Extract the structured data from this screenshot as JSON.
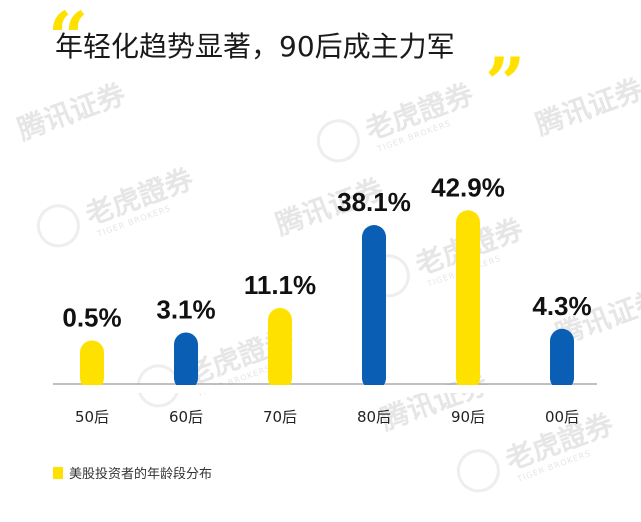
{
  "watermarks": [
    {
      "cn": "腾讯证券"
    },
    {
      "cn": "老虎證券",
      "en": "TIGER BROKERS"
    }
  ],
  "chart_data": {
    "type": "bar",
    "title": "年轻化趋势显著，90后成主力军",
    "categories": [
      "50后",
      "60后",
      "70后",
      "80后",
      "90后",
      "00后"
    ],
    "values": [
      0.5,
      3.1,
      11.1,
      38.1,
      42.9,
      4.3
    ],
    "value_labels": [
      "0.5%",
      "3.1%",
      "11.1%",
      "38.1%",
      "42.9%",
      "4.3%"
    ],
    "bar_colors": [
      "#ffe100",
      "#0a5fb4",
      "#ffe100",
      "#0a5fb4",
      "#ffe100",
      "#0a5fb4"
    ],
    "legend": [
      {
        "label": "美股投资者的年龄段分布",
        "color": "#ffe100"
      }
    ],
    "ylim": [
      0,
      45
    ],
    "xlabel": "",
    "ylabel": ""
  }
}
